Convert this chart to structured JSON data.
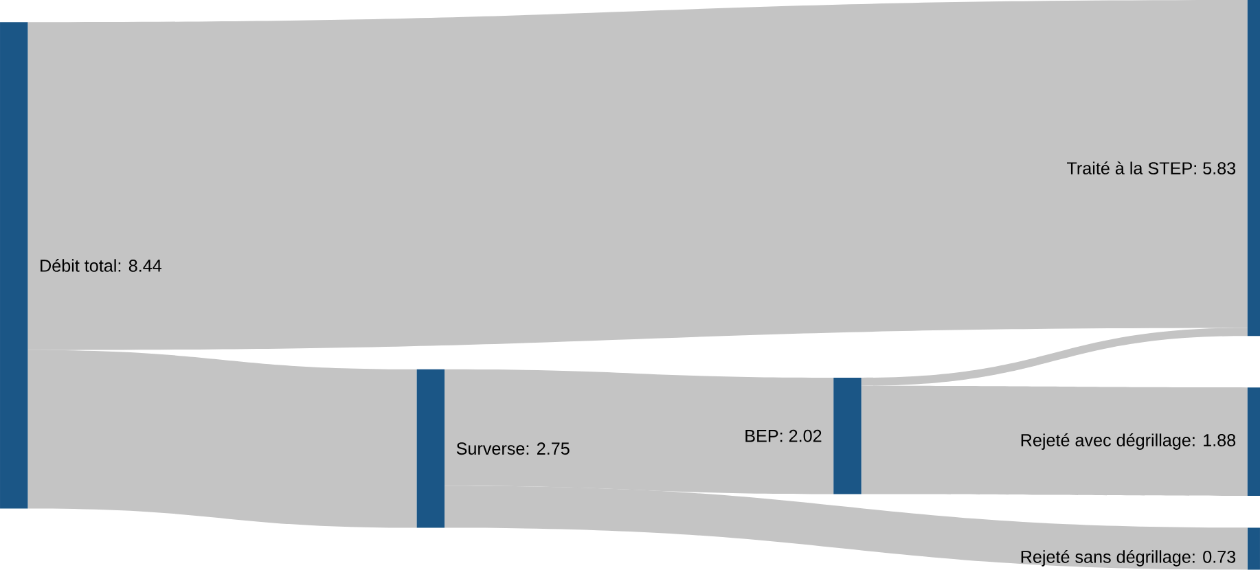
{
  "chart_data": {
    "type": "other",
    "categories": [
      "Débit total",
      "Traité à la STEP",
      "Surverse",
      "BEP",
      "Rejeté avec dégrillage",
      "Rejeté sans dégrillage"
    ],
    "values": [
      8.44,
      5.83,
      2.75,
      2.02,
      1.88,
      0.73
    ],
    "value_labels": [
      ": 8.44",
      ": 5.83",
      ": 2.75",
      ": 2.02",
      ": 1.88",
      ": 0.73"
    ]
  }
}
